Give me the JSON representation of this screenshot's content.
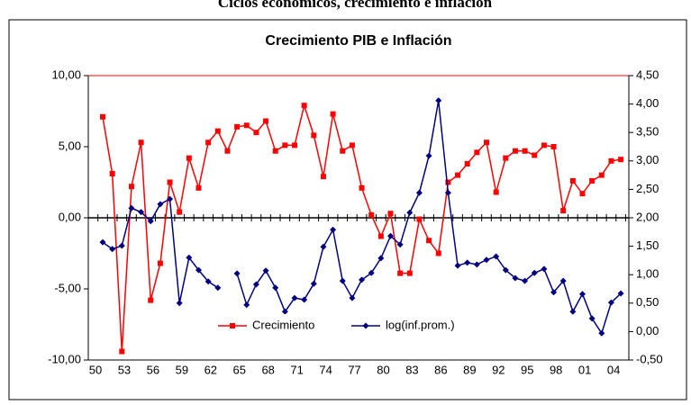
{
  "chart_data": {
    "type": "line",
    "suptitle": "Ciclos económicos, crecimiento e inflación",
    "title": "Crecimiento PIB e Inflación",
    "categories": [
      "50",
      null,
      null,
      "53",
      null,
      null,
      "56",
      null,
      null,
      "59",
      null,
      null,
      "62",
      null,
      null,
      "65",
      null,
      null,
      "68",
      null,
      null,
      "71",
      null,
      null,
      "74",
      null,
      null,
      "77",
      null,
      null,
      "80",
      null,
      null,
      "83",
      null,
      null,
      "86",
      null,
      null,
      "89",
      null,
      null,
      "92",
      null,
      null,
      "95",
      null,
      null,
      "98",
      null,
      null,
      "01",
      null,
      null,
      "04"
    ],
    "ylim": [
      -10,
      10
    ],
    "yticks": [
      {
        "value": -10,
        "label": "-10,00"
      },
      {
        "value": -5,
        "label": "-5,00"
      },
      {
        "value": 0,
        "label": "0,00"
      },
      {
        "value": 5,
        "label": "5,00"
      },
      {
        "value": 10,
        "label": "10,00"
      }
    ],
    "y2lim": [
      -0.5,
      4.5
    ],
    "y2ticks": [
      {
        "value": -0.5,
        "label": "-0,50"
      },
      {
        "value": 0,
        "label": "0,00"
      },
      {
        "value": 0.5,
        "label": "0,50"
      },
      {
        "value": 1,
        "label": "1,00"
      },
      {
        "value": 1.5,
        "label": "1,50"
      },
      {
        "value": 2,
        "label": "2,00"
      },
      {
        "value": 2.5,
        "label": "2,50"
      },
      {
        "value": 3,
        "label": "3,00"
      },
      {
        "value": 3.5,
        "label": "3,50"
      },
      {
        "value": 4,
        "label": "4,00"
      },
      {
        "value": 4.5,
        "label": "4,50"
      }
    ],
    "series": [
      {
        "name": "Crecimiento",
        "color": "#ff0000",
        "marker": "square",
        "values": [
          7.1,
          3.1,
          -9.4,
          2.2,
          5.3,
          -5.8,
          -3.2,
          2.5,
          0.4,
          4.2,
          2.1,
          5.3,
          6.1,
          4.7,
          6.4,
          6.5,
          6.0,
          6.8,
          4.7,
          5.1,
          5.1,
          7.9,
          5.8,
          2.9,
          7.3,
          4.7,
          5.1,
          2.1,
          0.2,
          -1.3,
          0.3,
          -3.9,
          -3.9,
          -0.1,
          -1.6,
          -2.5,
          2.5,
          3.0,
          3.8,
          4.6,
          5.3,
          1.8,
          4.2,
          4.7,
          4.7,
          4.4,
          5.1,
          5.0,
          0.5,
          2.6,
          1.7,
          2.6,
          3.0,
          4.0,
          4.1
        ]
      },
      {
        "name": "log(inf.prom.)",
        "color": "#000080",
        "marker": "diamond",
        "axis": "y2",
        "values": [
          1.57,
          1.45,
          1.51,
          2.17,
          2.1,
          1.94,
          2.24,
          2.33,
          0.5,
          1.3,
          1.08,
          0.88,
          0.77,
          null,
          1.02,
          0.47,
          0.83,
          1.07,
          0.77,
          0.35,
          0.59,
          0.56,
          0.84,
          1.49,
          1.79,
          0.89,
          0.59,
          0.91,
          1.03,
          1.29,
          1.68,
          1.53,
          2.09,
          2.44,
          3.09,
          4.06,
          2.44,
          1.16,
          1.21,
          1.18,
          1.26,
          1.32,
          1.08,
          0.94,
          0.89,
          1.03,
          1.1,
          0.69,
          0.89,
          0.35,
          0.66,
          0.23,
          -0.03,
          0.51,
          0.67
        ]
      }
    ]
  }
}
